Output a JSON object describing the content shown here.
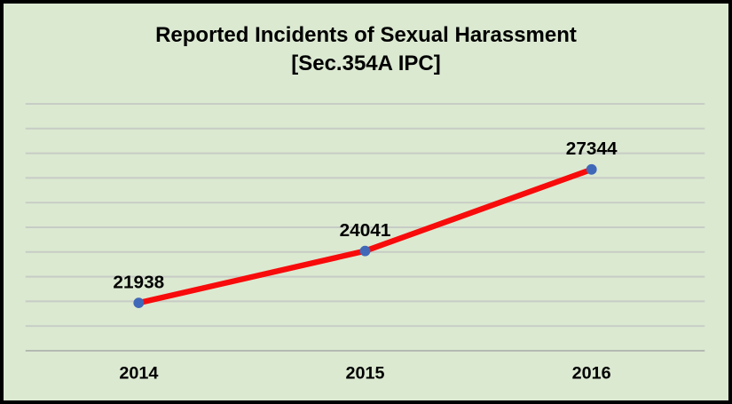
{
  "chart": {
    "title_line1": "Reported Incidents of Sexual Harassment",
    "title_line2": "[Sec.354A IPC]"
  },
  "chart_data": {
    "type": "line",
    "title": "Reported Incidents of Sexual Harassment [Sec.354A IPC]",
    "categories": [
      "2014",
      "2015",
      "2016"
    ],
    "series": [
      {
        "name": "Reported Incidents",
        "values": [
          21938,
          24041,
          27344
        ]
      }
    ],
    "data_labels": [
      "21938",
      "24041",
      "27344"
    ],
    "xlabel": "",
    "ylabel": "",
    "ylim": [
      20000,
      30000
    ],
    "gridline_step": 1000,
    "grid": true,
    "y_axis_labels_visible": false,
    "legend_position": "none",
    "colors": {
      "background": "#dbe9d1",
      "border": "#000000",
      "gridline": "#c7ccc5",
      "axis_line": "#b3bab1",
      "line": "#f80b0b",
      "marker": "#4068b8",
      "text": "#000000"
    },
    "marker_shape": "circle",
    "line_width": 6.5,
    "marker_radius": 6
  }
}
